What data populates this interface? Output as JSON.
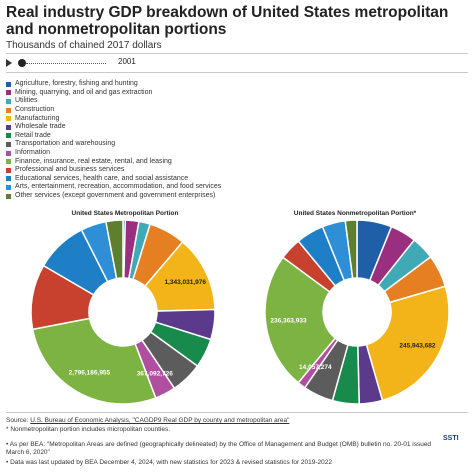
{
  "title": "Real industry GDP breakdown of United States metropolitan and nonmetropolitan portions",
  "subtitle": "Thousands of chained 2017 dollars",
  "slider": {
    "year": "2001"
  },
  "legend": [
    {
      "label": "Agriculture, forestry, fishing and hunting",
      "color": "#1f5fa8"
    },
    {
      "label": "Mining, quarrying, and oil and gas extraction",
      "color": "#9b2f7f"
    },
    {
      "label": "Utilities",
      "color": "#3fa9b5"
    },
    {
      "label": "Construction",
      "color": "#e67e22"
    },
    {
      "label": "Manufacturing",
      "color": "#f2b418"
    },
    {
      "label": "Wholesale trade",
      "color": "#5b3a8c"
    },
    {
      "label": "Retail trade",
      "color": "#178a4c"
    },
    {
      "label": "Transportation and warehousing",
      "color": "#5c5c5c"
    },
    {
      "label": "Information",
      "color": "#b04fa0"
    },
    {
      "label": "Finance, insurance, real estate, rental, and leasing",
      "color": "#7cb342"
    },
    {
      "label": "Professional and business services",
      "color": "#c8412e"
    },
    {
      "label": "Educational services, health care, and social assistance",
      "color": "#1e7fc6"
    },
    {
      "label": "Arts, entertainment, recreation, accommodation, and food services",
      "color": "#2e8fd6"
    },
    {
      "label": "Other services (except government and government enterprises)",
      "color": "#5d7f2e"
    }
  ],
  "chart_data": [
    {
      "type": "pie",
      "title": "United States Metropolitan Portion",
      "labels": [
        "Agriculture, forestry, fishing and hunting",
        "Mining, quarrying, and oil and gas extraction",
        "Utilities",
        "Construction",
        "Manufacturing",
        "Wholesale trade",
        "Retail trade",
        "Transportation and warehousing",
        "Information",
        "Finance, insurance, real estate, rental, and leasing",
        "Professional and business services",
        "Educational services, health care, and social assistance",
        "Arts, entertainment, recreation, accommodation, and food services",
        "Other services (except government and government enterprises)"
      ],
      "values": [
        40000000,
        240000000,
        200000000,
        650000000,
        1343031976,
        530000000,
        520000000,
        560000000,
        367092726,
        2796186955,
        1150000000,
        920000000,
        450000000,
        300000000
      ],
      "data_labels": [
        {
          "index": 9,
          "text": "2,796,186,955"
        },
        {
          "index": 4,
          "text": "1,343,031,976"
        },
        {
          "index": 8,
          "text": "367,092,726"
        }
      ]
    },
    {
      "type": "pie",
      "title": "United States Nonmetropolitan Portion*",
      "labels": [
        "Agriculture, forestry, fishing and hunting",
        "Mining, quarrying, and oil and gas extraction",
        "Utilities",
        "Construction",
        "Manufacturing",
        "Wholesale trade",
        "Retail trade",
        "Transportation and warehousing",
        "Information",
        "Finance, insurance, real estate, rental, and leasing",
        "Professional and business services",
        "Educational services, health care, and social assistance",
        "Arts, entertainment, recreation, accommodation, and food services",
        "Other services (except government and government enterprises)"
      ],
      "values": [
        60000000,
        45000000,
        40000000,
        56000000,
        245943682,
        40000000,
        46000000,
        52000000,
        14057274,
        236363933,
        38000000,
        48000000,
        40000000,
        20000000
      ],
      "data_labels": [
        {
          "index": 4,
          "text": "245,943,682"
        },
        {
          "index": 9,
          "text": "236,363,933"
        },
        {
          "index": 8,
          "text": "14,057,274"
        }
      ]
    }
  ],
  "footer": {
    "source_prefix": "Source: ",
    "source_link": "U.S. Bureau of Economic Analysis, \"CAGDP9 Real GDP by county and metropolitan area\"",
    "note1": "* Nonmetropolitan portion includes micropolitan counties.",
    "note2": "• As per BEA: \"Metropolitan Areas are defined (geographically delineated) by the Office of Management and Budget (OMB) bulletin no. 20-01 issued March 6, 2020\"",
    "note3": "• Data was last updated by BEA December 4, 2024, with new statistics for 2023 & revised statistics for 2019-2022",
    "logo": "SSTI"
  }
}
